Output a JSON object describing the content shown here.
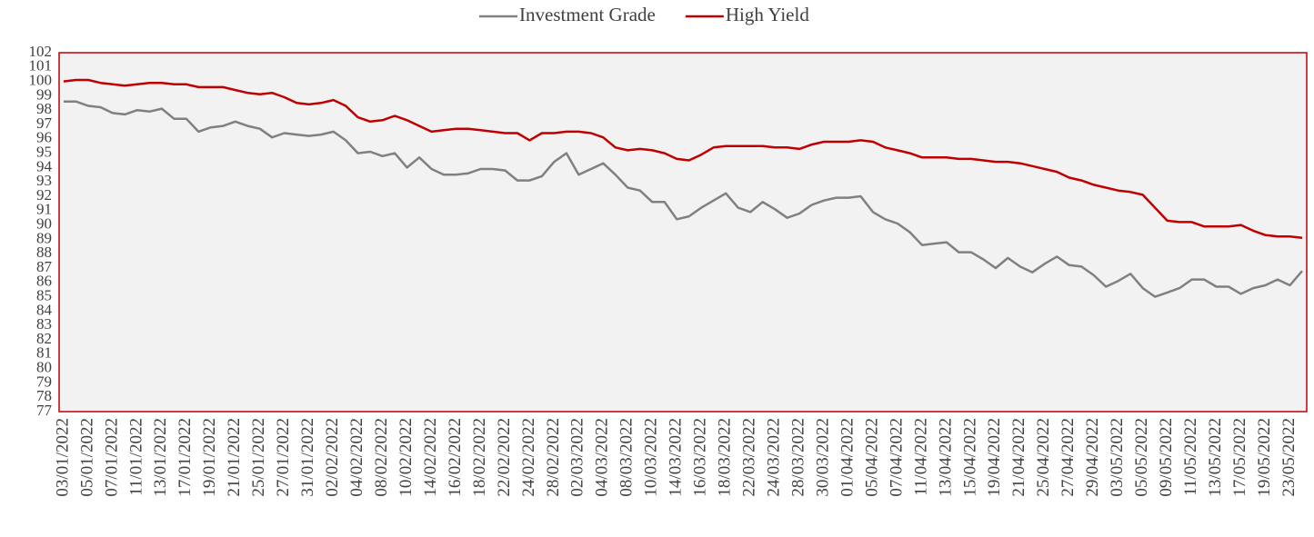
{
  "chart_data": {
    "type": "line",
    "categories": [
      "03/01/2022",
      null,
      "05/01/2022",
      null,
      "07/01/2022",
      null,
      "11/01/2022",
      null,
      "13/01/2022",
      null,
      "17/01/2022",
      null,
      "19/01/2022",
      null,
      "21/01/2022",
      null,
      "25/01/2022",
      null,
      "27/01/2022",
      null,
      "31/01/2022",
      null,
      "02/02/2022",
      null,
      "04/02/2022",
      null,
      "08/02/2022",
      null,
      "10/02/2022",
      null,
      "14/02/2022",
      null,
      "16/02/2022",
      null,
      "18/02/2022",
      null,
      "22/02/2022",
      null,
      "24/02/2022",
      null,
      "28/02/2022",
      null,
      "02/03/2022",
      null,
      "04/03/2022",
      null,
      "08/03/2022",
      null,
      "10/03/2022",
      null,
      "14/03/2022",
      null,
      "16/03/2022",
      null,
      "18/03/2022",
      null,
      "22/03/2022",
      null,
      "24/03/2022",
      null,
      "28/03/2022",
      null,
      "30/03/2022",
      null,
      "01/04/2022",
      null,
      "05/04/2022",
      null,
      "07/04/2022",
      null,
      "11/04/2022",
      null,
      "13/04/2022",
      null,
      "15/04/2022",
      null,
      "19/04/2022",
      null,
      "21/04/2022",
      null,
      "25/04/2022",
      null,
      "27/04/2022",
      null,
      "29/04/2022",
      null,
      "03/05/2022",
      null,
      "05/05/2022",
      null,
      "09/05/2022",
      null,
      "11/05/2022",
      null,
      "13/05/2022",
      null,
      "17/05/2022",
      null,
      "19/05/2022",
      null,
      "23/05/2022",
      null
    ],
    "series": [
      {
        "name": "Investment Grade",
        "color": "#808080",
        "values": [
          98.6,
          98.6,
          98.3,
          98.2,
          97.8,
          97.7,
          98.0,
          97.9,
          98.1,
          97.4,
          97.4,
          96.5,
          96.8,
          96.9,
          97.2,
          96.9,
          96.7,
          96.1,
          96.4,
          96.3,
          96.2,
          96.3,
          96.5,
          95.9,
          95.0,
          95.1,
          94.8,
          95.0,
          94.0,
          94.7,
          93.9,
          93.5,
          93.5,
          93.6,
          93.9,
          93.9,
          93.8,
          93.1,
          93.1,
          93.4,
          94.4,
          95.0,
          93.5,
          93.9,
          94.3,
          93.5,
          92.6,
          92.4,
          91.6,
          91.6,
          90.4,
          90.6,
          91.2,
          91.7,
          92.2,
          91.2,
          90.9,
          91.6,
          91.1,
          90.5,
          90.8,
          91.4,
          91.7,
          91.9,
          91.9,
          92.0,
          90.9,
          90.4,
          90.1,
          89.5,
          88.6,
          88.7,
          88.8,
          88.1,
          88.1,
          87.6,
          87.0,
          87.7,
          87.1,
          86.7,
          87.3,
          87.8,
          87.2,
          87.1,
          86.5,
          85.7,
          86.1,
          86.6,
          85.6,
          85.0,
          85.3,
          85.6,
          86.2,
          86.2,
          85.7,
          85.7,
          85.2,
          85.6,
          85.8,
          86.2,
          85.8,
          86.8
        ]
      },
      {
        "name": "High Yield",
        "color": "#c00000",
        "values": [
          100.0,
          100.1,
          100.1,
          99.9,
          99.8,
          99.7,
          99.8,
          99.9,
          99.9,
          99.8,
          99.8,
          99.6,
          99.6,
          99.6,
          99.4,
          99.2,
          99.1,
          99.2,
          98.9,
          98.5,
          98.4,
          98.5,
          98.7,
          98.3,
          97.5,
          97.2,
          97.3,
          97.6,
          97.3,
          96.9,
          96.5,
          96.6,
          96.7,
          96.7,
          96.6,
          96.5,
          96.4,
          96.4,
          95.9,
          96.4,
          96.4,
          96.5,
          96.5,
          96.4,
          96.1,
          95.4,
          95.2,
          95.3,
          95.2,
          95.0,
          94.6,
          94.5,
          94.9,
          95.4,
          95.5,
          95.5,
          95.5,
          95.5,
          95.4,
          95.4,
          95.3,
          95.6,
          95.8,
          95.8,
          95.8,
          95.9,
          95.8,
          95.4,
          95.2,
          95.0,
          94.7,
          94.7,
          94.7,
          94.6,
          94.6,
          94.5,
          94.4,
          94.4,
          94.3,
          94.1,
          93.9,
          93.7,
          93.3,
          93.1,
          92.8,
          92.6,
          92.4,
          92.3,
          92.1,
          91.2,
          90.3,
          90.2,
          90.2,
          89.9,
          89.9,
          89.9,
          90.0,
          89.6,
          89.3,
          89.2,
          89.2,
          89.1
        ]
      }
    ],
    "ylim": [
      77,
      102
    ],
    "yticks": [
      77,
      78,
      79,
      80,
      81,
      82,
      83,
      84,
      85,
      86,
      87,
      88,
      89,
      90,
      91,
      92,
      93,
      94,
      95,
      96,
      97,
      98,
      99,
      100,
      101,
      102
    ],
    "legend": "top",
    "plot_background": "#f2f2f2",
    "plot_border": "#c00000"
  }
}
